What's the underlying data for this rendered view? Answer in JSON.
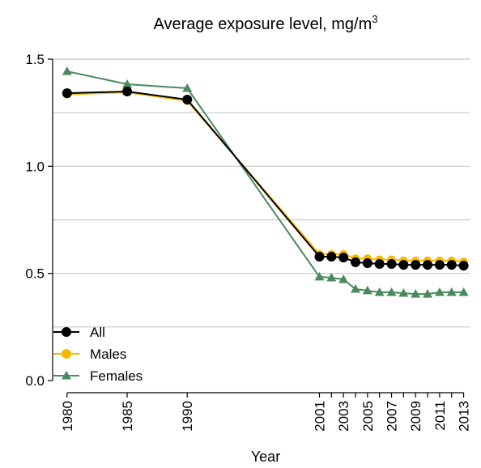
{
  "chart_data": {
    "type": "line",
    "title": "Average exposure level, mg/m",
    "title_superscript": "3",
    "x_label": "Year",
    "x": [
      1980,
      1985,
      1990,
      2001,
      2002,
      2003,
      2004,
      2005,
      2006,
      2007,
      2008,
      2009,
      2010,
      2011,
      2012,
      2013
    ],
    "series": [
      {
        "name": "All",
        "color": "#000000",
        "marker": "circle",
        "values": [
          1.341,
          1.349,
          1.311,
          0.578,
          0.578,
          0.574,
          0.552,
          0.548,
          0.544,
          0.544,
          0.54,
          0.54,
          0.54,
          0.54,
          0.54,
          0.536
        ]
      },
      {
        "name": "Males",
        "color": "#f5b800",
        "marker": "circle",
        "values": [
          1.335,
          1.345,
          1.305,
          0.59,
          0.59,
          0.59,
          0.57,
          0.57,
          0.565,
          0.565,
          0.56,
          0.56,
          0.56,
          0.56,
          0.56,
          0.555
        ]
      },
      {
        "name": "Females",
        "color": "#4a8a5e",
        "marker": "triangle",
        "values": [
          1.443,
          1.383,
          1.364,
          0.484,
          0.48,
          0.472,
          0.427,
          0.42,
          0.412,
          0.412,
          0.408,
          0.404,
          0.404,
          0.412,
          0.412,
          0.412
        ]
      }
    ],
    "xlim": [
      1978.8,
      2013.5
    ],
    "xticks": [
      1980,
      1985,
      1990,
      2001,
      2003,
      2005,
      2007,
      2009,
      2011,
      2013
    ],
    "xminor_ticks": [
      2002,
      2004,
      2006,
      2008,
      2010,
      2012
    ],
    "ylim": [
      0,
      1.5
    ],
    "yticks": [
      {
        "value": 0,
        "label": "0.0"
      },
      0.5,
      {
        "value": 1,
        "label": "1.0"
      },
      {
        "value": 1.5,
        "label": "1.5"
      }
    ],
    "grid_lines": [
      0.25,
      0.5,
      0.75,
      1,
      1.25,
      1.5
    ],
    "legend": "bottom-left"
  }
}
